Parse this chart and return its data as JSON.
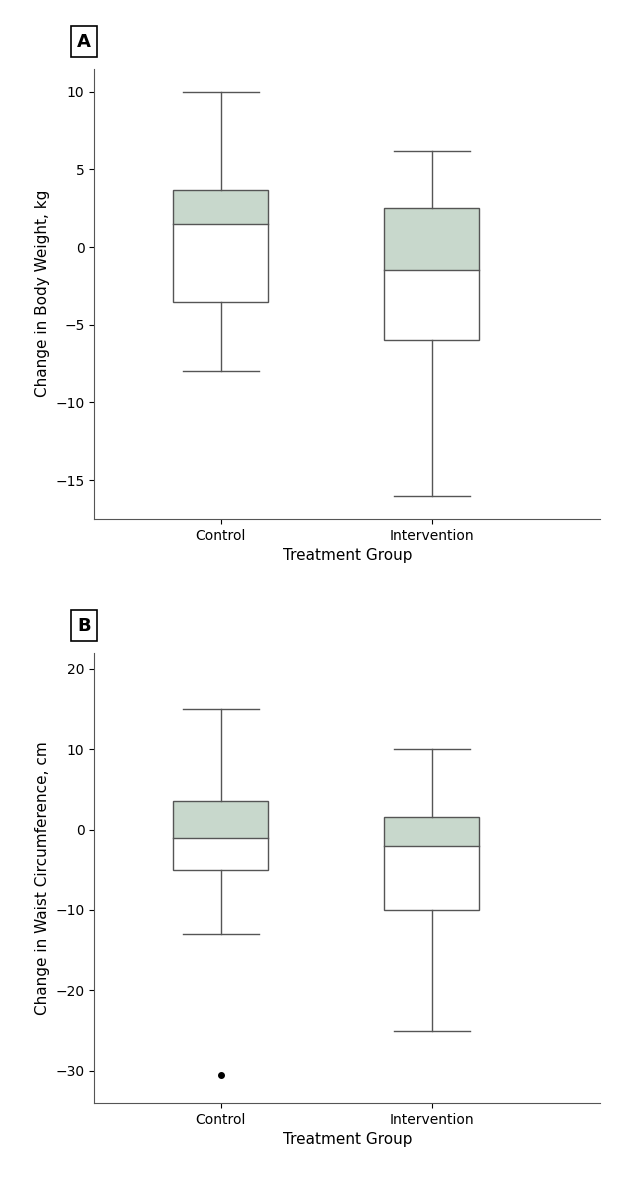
{
  "panel_a": {
    "label": "A",
    "ylabel": "Change in Body Weight, kg",
    "xlabel": "Treatment Group",
    "ylim": [
      -17.5,
      11.5
    ],
    "yticks": [
      10,
      5,
      0,
      -5,
      -10,
      -15
    ],
    "groups": [
      "Control",
      "Intervention"
    ],
    "box_color": "#c8d8cc",
    "control": {
      "whisker_low": -8.0,
      "q1": -3.5,
      "median": 1.5,
      "q3": 3.7,
      "whisker_high": 10.0
    },
    "intervention": {
      "whisker_low": -16.0,
      "q1": -6.0,
      "median": -1.5,
      "q3": 2.5,
      "whisker_high": 6.2
    },
    "outliers_control": [],
    "outliers_intervention": []
  },
  "panel_b": {
    "label": "B",
    "ylabel": "Change in Waist Circumference, cm",
    "xlabel": "Treatment Group",
    "ylim": [
      -34,
      22
    ],
    "yticks": [
      20,
      10,
      0,
      -10,
      -20,
      -30
    ],
    "groups": [
      "Control",
      "Intervention"
    ],
    "box_color": "#c8d8cc",
    "control": {
      "whisker_low": -13.0,
      "q1": -5.0,
      "median": -1.0,
      "q3": 3.5,
      "whisker_high": 15.0
    },
    "intervention": {
      "whisker_low": -25.0,
      "q1": -10.0,
      "median": -2.0,
      "q3": 1.5,
      "whisker_high": 10.0
    },
    "outliers_control": [
      -30.5
    ],
    "outliers_intervention": []
  },
  "box_width": 0.45,
  "positions": [
    1,
    2
  ],
  "bg_color": "#ffffff",
  "line_color": "#555555",
  "label_fontsize": 11,
  "tick_fontsize": 10,
  "panel_label_fontsize": 13
}
